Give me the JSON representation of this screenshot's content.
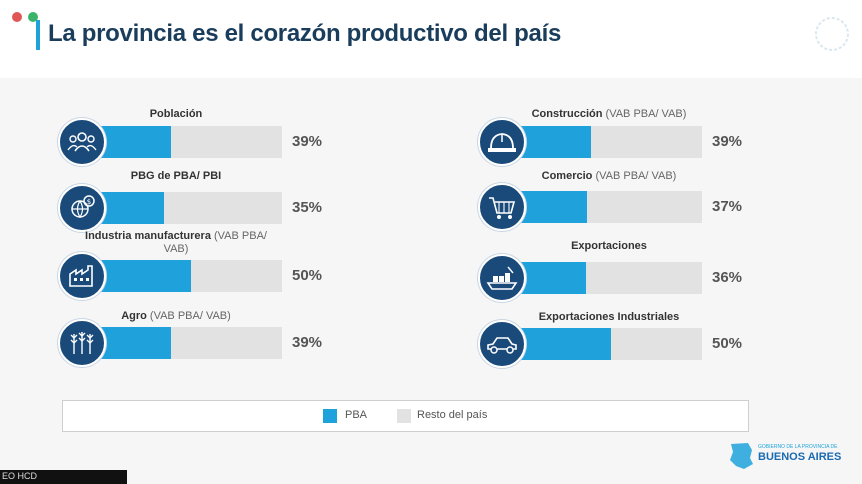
{
  "header": {
    "title": "La provincia es el corazón productivo del país"
  },
  "chart_data": {
    "type": "bar",
    "unit": "%",
    "categories": [
      {
        "name": "Población",
        "note": "",
        "value": 39,
        "value_label": "39%",
        "icon": "people-icon"
      },
      {
        "name": "PBG de PBA/ PBI",
        "note": "",
        "value": 35,
        "value_label": "35%",
        "icon": "globe-money-icon"
      },
      {
        "name": "Industria manufacturera",
        "note": "(VAB PBA/ VAB)",
        "value": 50,
        "value_label": "50%",
        "icon": "factory-icon"
      },
      {
        "name": "Agro",
        "note": "(VAB PBA/ VAB)",
        "value": 39,
        "value_label": "39%",
        "icon": "wheat-icon"
      },
      {
        "name": "Construcción",
        "note": "(VAB PBA/ VAB)",
        "value": 39,
        "value_label": "39%",
        "icon": "hard-hat-icon"
      },
      {
        "name": "Comercio",
        "note": "(VAB PBA/ VAB)",
        "value": 37,
        "value_label": "37%",
        "icon": "shopping-cart-icon"
      },
      {
        "name": "Exportaciones",
        "note": "",
        "value": 36,
        "value_label": "36%",
        "icon": "cargo-ship-icon"
      },
      {
        "name": "Exportaciones Industriales",
        "note": "",
        "value": 50,
        "value_label": "50%",
        "icon": "car-icon"
      }
    ],
    "series": [
      {
        "name": "PBA",
        "color": "#1fa2dc"
      },
      {
        "name": "Resto del país",
        "color": "#e2e2e2"
      }
    ],
    "ylim": [
      0,
      100
    ],
    "legend_position": "bottom"
  },
  "legend": {
    "pba_label": "PBA",
    "rest_label": "Resto del país"
  },
  "footer": {
    "logo_small": "GOBIERNO DE LA PROVINCIA DE",
    "logo_big": "BUENOS AIRES"
  },
  "overlay": {
    "corner_label": "EO HCD"
  },
  "colors": {
    "accent": "#1fa2dc",
    "title": "#1a3d5c",
    "icon_bg": "#1a4a7a",
    "bar_bg": "#e2e2e2"
  }
}
